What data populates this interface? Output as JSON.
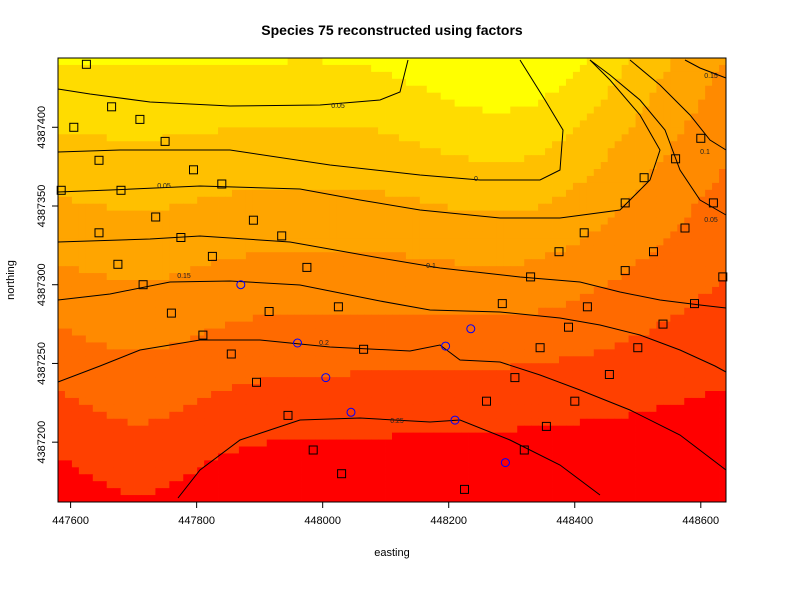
{
  "chart_data": {
    "type": "heatmap",
    "title": "Species 75 reconstructed using factors",
    "xlabel": "easting",
    "ylabel": "northing",
    "xlim": [
      447580,
      448640
    ],
    "ylim": [
      4387162,
      4387444
    ],
    "x_ticks": [
      447600,
      447800,
      448000,
      448200,
      448400,
      448600
    ],
    "y_ticks": [
      4387200,
      4387250,
      4387300,
      4387350,
      4387400
    ],
    "colormap": [
      "#ff0000",
      "#ff4000",
      "#ff6a00",
      "#ff8a00",
      "#ffa500",
      "#ffc000",
      "#ffdc00",
      "#ffff00",
      "#ffff60",
      "#ffffb0",
      "#ffffdc"
    ],
    "contour_labels": [
      "0.05",
      "0",
      "0.05",
      "0.1",
      "0.15",
      "0.2",
      "0.25",
      "0.15",
      "0.1",
      "0.05"
    ],
    "absent_sites": [
      [
        447625,
        4387440
      ],
      [
        447665,
        4387413
      ],
      [
        447605,
        4387400
      ],
      [
        447710,
        4387405
      ],
      [
        447585,
        4387360
      ],
      [
        447645,
        4387379
      ],
      [
        447680,
        4387360
      ],
      [
        447645,
        4387333
      ],
      [
        447675,
        4387313
      ],
      [
        447715,
        4387300
      ],
      [
        447735,
        4387343
      ],
      [
        447750,
        4387391
      ],
      [
        447760,
        4387282
      ],
      [
        447775,
        4387330
      ],
      [
        447795,
        4387373
      ],
      [
        447810,
        4387268
      ],
      [
        447825,
        4387318
      ],
      [
        447840,
        4387364
      ],
      [
        447855,
        4387256
      ],
      [
        447890,
        4387341
      ],
      [
        447895,
        4387238
      ],
      [
        447915,
        4387283
      ],
      [
        447935,
        4387331
      ],
      [
        447945,
        4387217
      ],
      [
        447975,
        4387311
      ],
      [
        447985,
        4387195
      ],
      [
        448025,
        4387286
      ],
      [
        448030,
        4387180
      ],
      [
        448065,
        4387259
      ],
      [
        448225,
        4387170
      ],
      [
        448260,
        4387226
      ],
      [
        448285,
        4387288
      ],
      [
        448305,
        4387241
      ],
      [
        448320,
        4387195
      ],
      [
        448330,
        4387305
      ],
      [
        448345,
        4387260
      ],
      [
        448355,
        4387210
      ],
      [
        448375,
        4387321
      ],
      [
        448390,
        4387273
      ],
      [
        448400,
        4387226
      ],
      [
        448415,
        4387333
      ],
      [
        448420,
        4387286
      ],
      [
        448455,
        4387243
      ],
      [
        448480,
        4387309
      ],
      [
        448480,
        4387352
      ],
      [
        448500,
        4387260
      ],
      [
        448510,
        4387368
      ],
      [
        448525,
        4387321
      ],
      [
        448540,
        4387275
      ],
      [
        448560,
        4387380
      ],
      [
        448575,
        4387336
      ],
      [
        448590,
        4387288
      ],
      [
        448600,
        4387393
      ],
      [
        448620,
        4387352
      ],
      [
        448635,
        4387305
      ]
    ],
    "present_sites": [
      [
        447870,
        4387300
      ],
      [
        447960,
        4387263
      ],
      [
        448005,
        4387241
      ],
      [
        448045,
        4387219
      ],
      [
        448195,
        4387261
      ],
      [
        448210,
        4387214
      ],
      [
        448235,
        4387272
      ],
      [
        448290,
        4387187
      ]
    ]
  }
}
